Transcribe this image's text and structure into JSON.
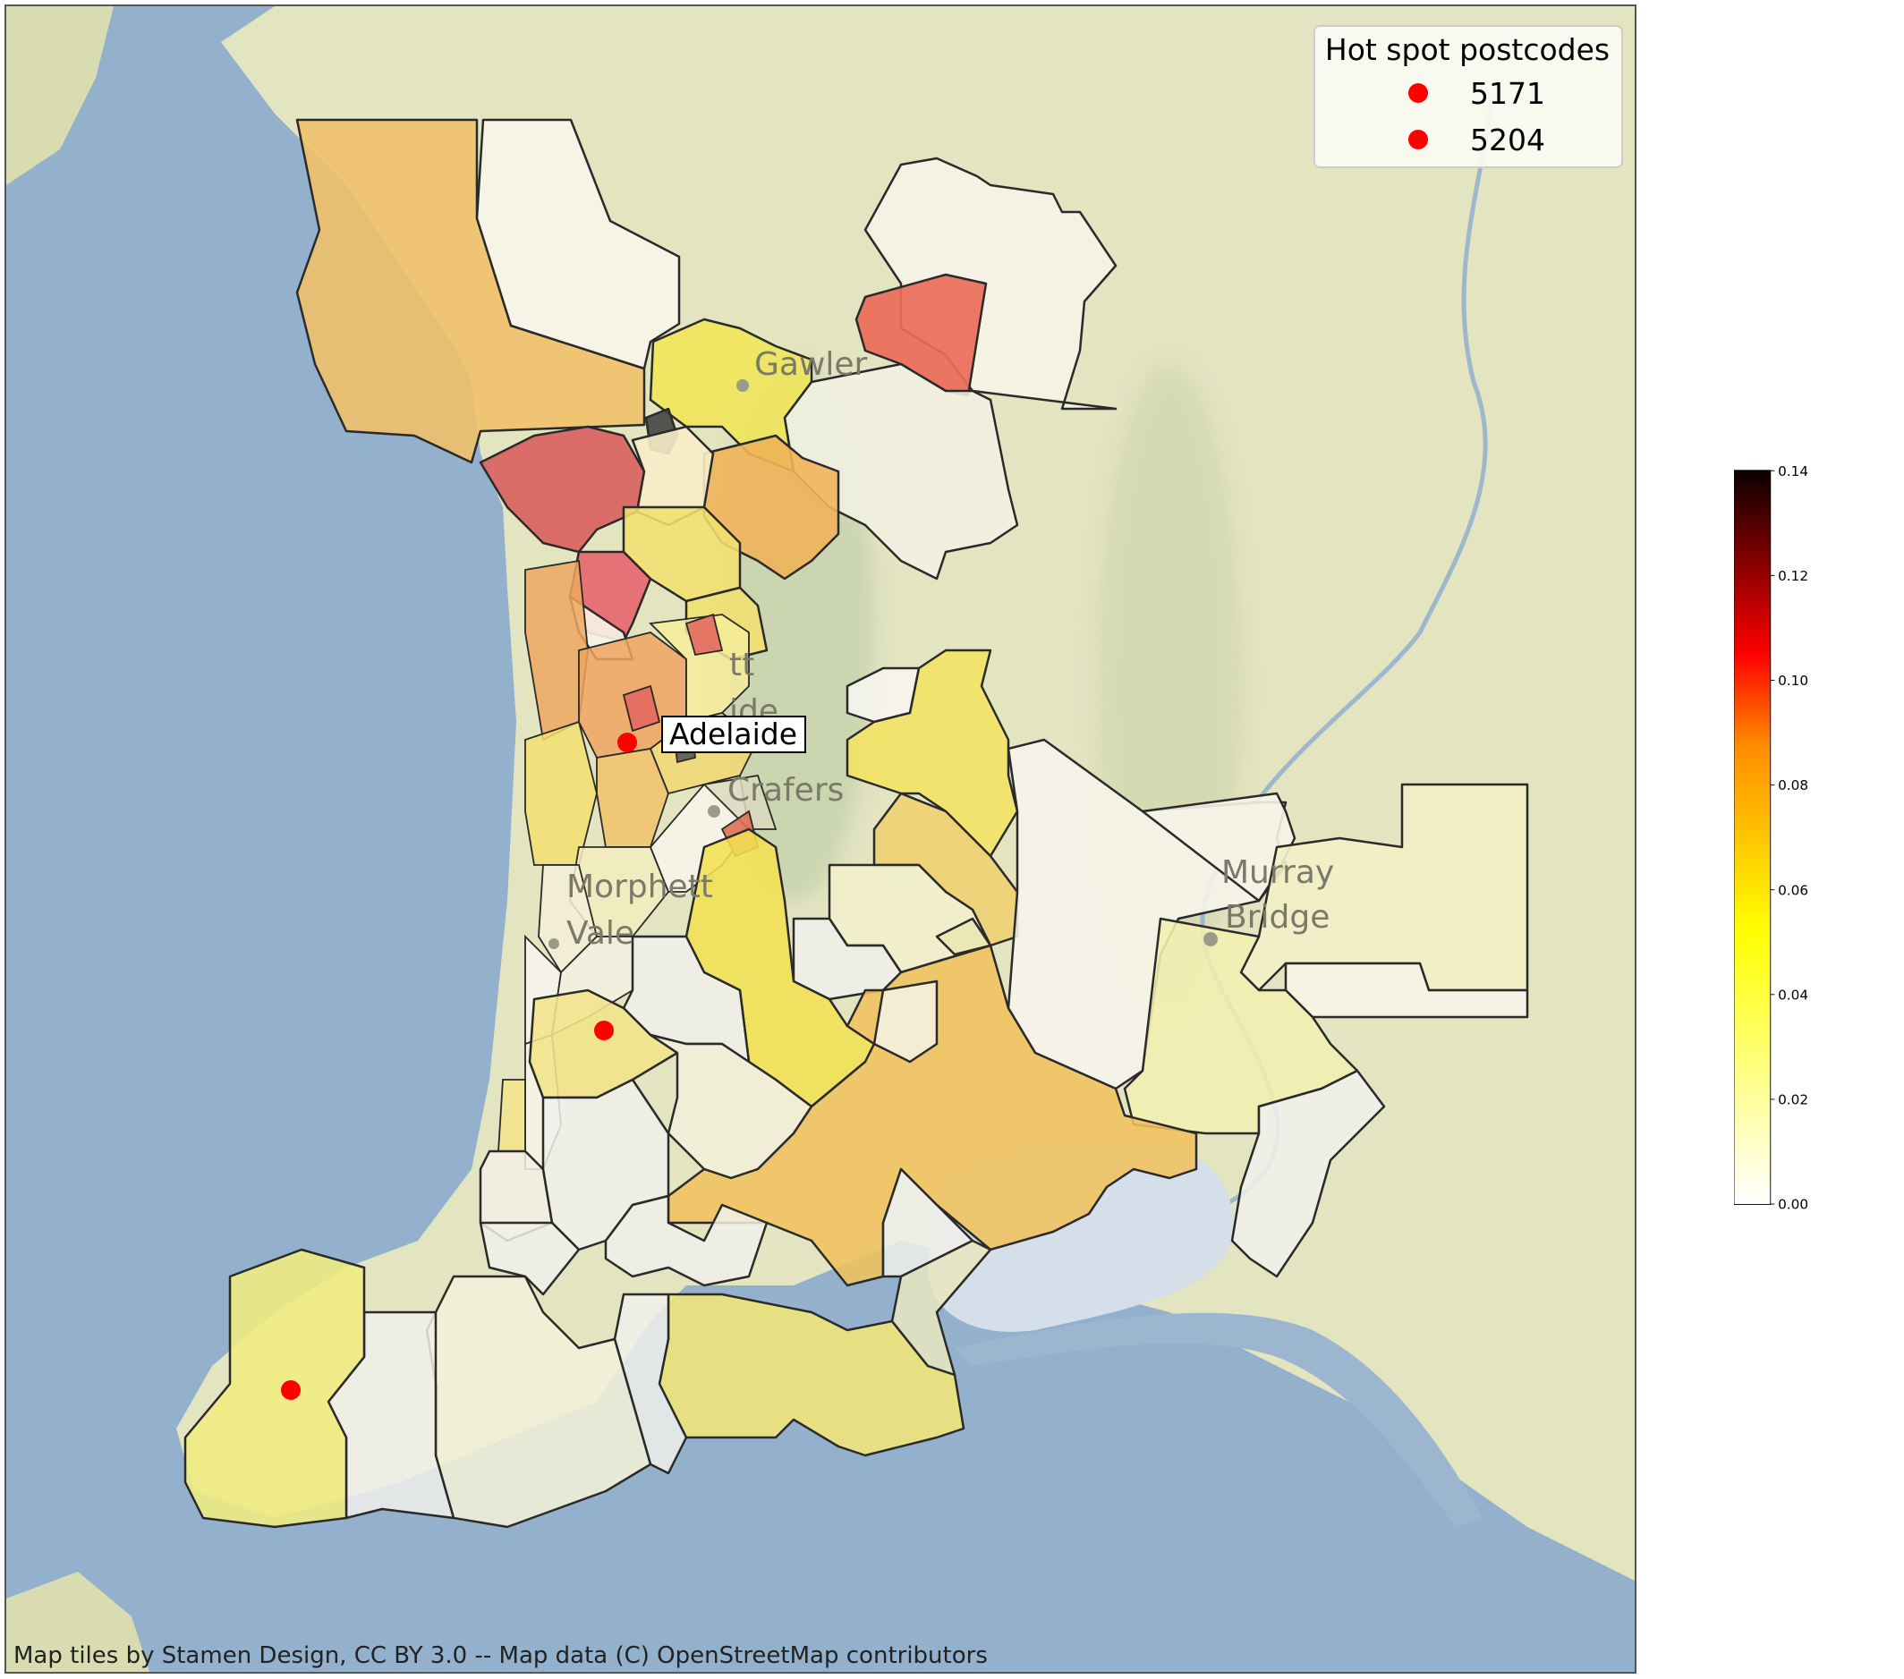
{
  "map": {
    "places": {
      "adelaide": "Adelaide",
      "crafers": "Crafers",
      "gawler": "Gawler",
      "morphett_line1": "Morphett",
      "morphett_line2": "Vale",
      "murray_line1": "Murray",
      "murray_line2": "Bridge",
      "elizabeth_frag": "tt",
      "adelaide_frag": "ide"
    },
    "attribution": "Map tiles by Stamen Design, CC BY 3.0 -- Map data (C) OpenStreetMap contributors",
    "legend": {
      "title": "Hot spot postcodes",
      "items": [
        {
          "label": "5171",
          "color": "#ff0000"
        },
        {
          "label": "5204",
          "color": "#ff0000"
        }
      ]
    },
    "colorbar": {
      "colormap": "hot_r",
      "range": [
        0.0,
        0.14
      ],
      "ticks": [
        "0.00",
        "0.02",
        "0.04",
        "0.06",
        "0.08",
        "0.10",
        "0.12",
        "0.14"
      ]
    },
    "colors": {
      "sea": "#93b0cd",
      "land": "#e3e4c0",
      "hotspot_marker": "#ff0000"
    }
  }
}
